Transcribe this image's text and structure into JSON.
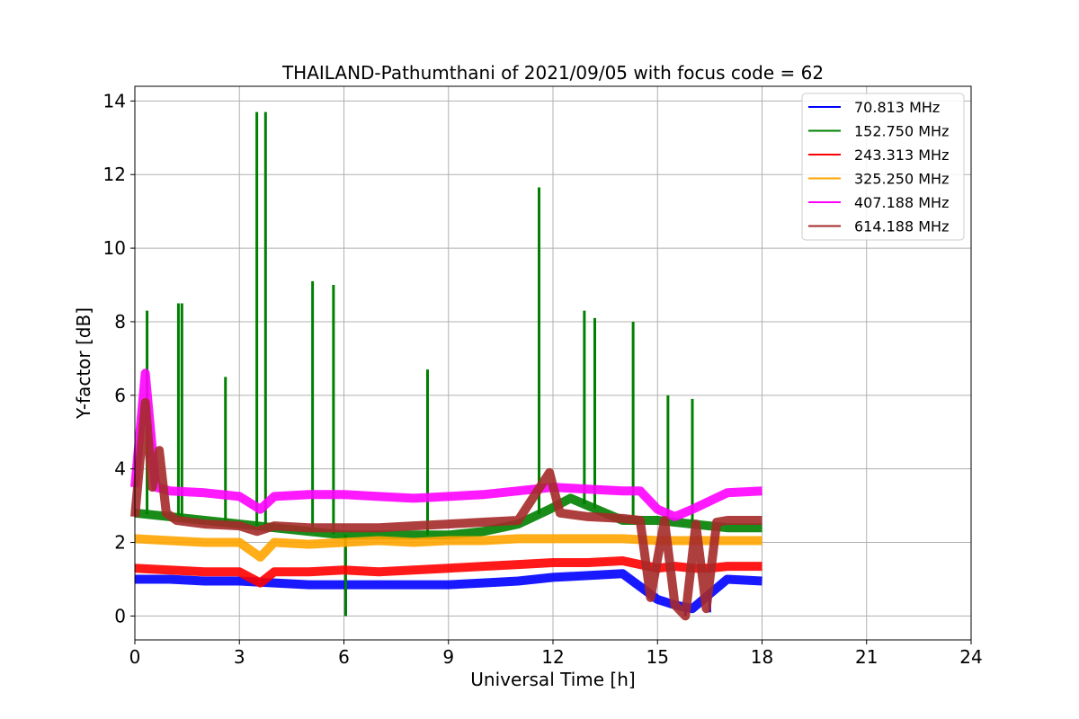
{
  "chart_data": {
    "type": "line",
    "title": "THAILAND-Pathumthani of 2021/09/05 with focus code = 62",
    "xlabel": "Universal Time [h]",
    "ylabel": "Y-factor [dB]",
    "xlim": [
      0,
      24
    ],
    "ylim": [
      -0.65,
      14.4
    ],
    "xticks": [
      0,
      3,
      6,
      9,
      12,
      15,
      18,
      21,
      24
    ],
    "yticks": [
      0,
      2,
      4,
      6,
      8,
      10,
      12,
      14
    ],
    "grid": true,
    "legend_position": "top-right",
    "series": [
      {
        "name": " 70.813 MHz",
        "color": "#0000ff",
        "x": [
          0,
          1,
          2,
          3,
          4,
          5,
          6,
          7,
          8,
          9,
          10,
          11,
          12,
          13,
          14,
          14.5,
          15,
          15.5,
          16,
          16.5,
          17,
          18
        ],
        "y": [
          1.0,
          1.0,
          0.95,
          0.95,
          0.9,
          0.85,
          0.85,
          0.85,
          0.85,
          0.85,
          0.9,
          0.95,
          1.05,
          1.1,
          1.15,
          0.8,
          0.45,
          0.3,
          0.2,
          0.6,
          1.0,
          0.95
        ],
        "spikes": [
          [
            6.05,
            0.0
          ],
          [
            15.8,
            0.0
          ],
          [
            16.5,
            0.1
          ]
        ]
      },
      {
        "name": "152.750 MHz",
        "color": "#008000",
        "x": [
          0,
          1,
          2,
          3,
          4,
          5,
          6,
          7,
          8,
          9,
          10,
          11,
          11.9,
          12.5,
          13,
          14,
          15,
          16,
          17,
          18
        ],
        "y": [
          2.8,
          2.7,
          2.6,
          2.5,
          2.4,
          2.3,
          2.2,
          2.2,
          2.2,
          2.2,
          2.3,
          2.5,
          2.9,
          3.2,
          3.0,
          2.6,
          2.6,
          2.5,
          2.4,
          2.4
        ],
        "spikes": [
          [
            0.35,
            8.3
          ],
          [
            1.25,
            8.5
          ],
          [
            1.35,
            8.5
          ],
          [
            2.6,
            6.5
          ],
          [
            3.5,
            13.7
          ],
          [
            3.75,
            13.7
          ],
          [
            5.1,
            9.1
          ],
          [
            5.7,
            9.0
          ],
          [
            8.4,
            6.7
          ],
          [
            11.6,
            11.65
          ],
          [
            12.9,
            8.3
          ],
          [
            13.2,
            8.1
          ],
          [
            14.3,
            8.0
          ],
          [
            15.3,
            6.0
          ],
          [
            16.0,
            5.9
          ],
          [
            6.05,
            0.0
          ]
        ]
      },
      {
        "name": "243.313 MHz",
        "color": "#ff0000",
        "x": [
          0,
          1,
          2,
          3,
          3.6,
          4,
          5,
          6,
          7,
          8,
          9,
          10,
          11,
          12,
          13,
          14,
          14.5,
          15,
          15.5,
          16,
          16.5,
          17,
          18
        ],
        "y": [
          1.3,
          1.25,
          1.2,
          1.2,
          0.9,
          1.2,
          1.2,
          1.25,
          1.2,
          1.25,
          1.3,
          1.35,
          1.4,
          1.45,
          1.45,
          1.5,
          1.4,
          1.3,
          1.35,
          1.3,
          1.3,
          1.35,
          1.35
        ],
        "spikes": []
      },
      {
        "name": "325.250 MHz",
        "color": "#ffa500",
        "x": [
          0,
          1,
          2,
          3,
          3.6,
          4,
          5,
          6,
          7,
          8,
          9,
          10,
          11,
          12,
          13,
          14,
          15,
          16,
          17,
          18
        ],
        "y": [
          2.1,
          2.05,
          2.0,
          2.0,
          1.6,
          2.0,
          1.95,
          2.0,
          2.05,
          2.0,
          2.05,
          2.05,
          2.1,
          2.1,
          2.1,
          2.1,
          2.05,
          2.05,
          2.05,
          2.05
        ],
        "spikes": []
      },
      {
        "name": "407.188 MHz",
        "color": "#ff00ff",
        "x": [
          0,
          0.3,
          0.6,
          1,
          2,
          3,
          3.6,
          4,
          5,
          6,
          7,
          8,
          9,
          10,
          11,
          12,
          13,
          14,
          14.5,
          15,
          15.5,
          16,
          17,
          18
        ],
        "y": [
          3.5,
          6.6,
          3.5,
          3.4,
          3.35,
          3.25,
          2.9,
          3.25,
          3.3,
          3.3,
          3.25,
          3.2,
          3.25,
          3.3,
          3.4,
          3.5,
          3.45,
          3.4,
          3.4,
          2.9,
          2.7,
          2.9,
          3.35,
          3.4
        ],
        "spikes": []
      },
      {
        "name": "614.188 MHz",
        "color": "#a52a2a",
        "x": [
          0,
          0.3,
          0.5,
          0.7,
          0.9,
          1.2,
          2,
          3,
          3.5,
          4,
          5,
          6,
          7,
          8,
          9,
          10,
          11,
          11.9,
          12.2,
          13,
          14,
          14.5,
          14.8,
          15.2,
          15.5,
          15.8,
          16.1,
          16.4,
          16.7,
          17,
          18
        ],
        "y": [
          2.7,
          5.8,
          3.5,
          4.5,
          2.8,
          2.6,
          2.5,
          2.45,
          2.3,
          2.45,
          2.4,
          2.4,
          2.4,
          2.45,
          2.5,
          2.55,
          2.6,
          3.9,
          2.8,
          2.7,
          2.65,
          2.6,
          0.5,
          2.6,
          0.3,
          0.0,
          2.5,
          0.2,
          2.55,
          2.6,
          2.6
        ],
        "spikes": []
      }
    ]
  }
}
